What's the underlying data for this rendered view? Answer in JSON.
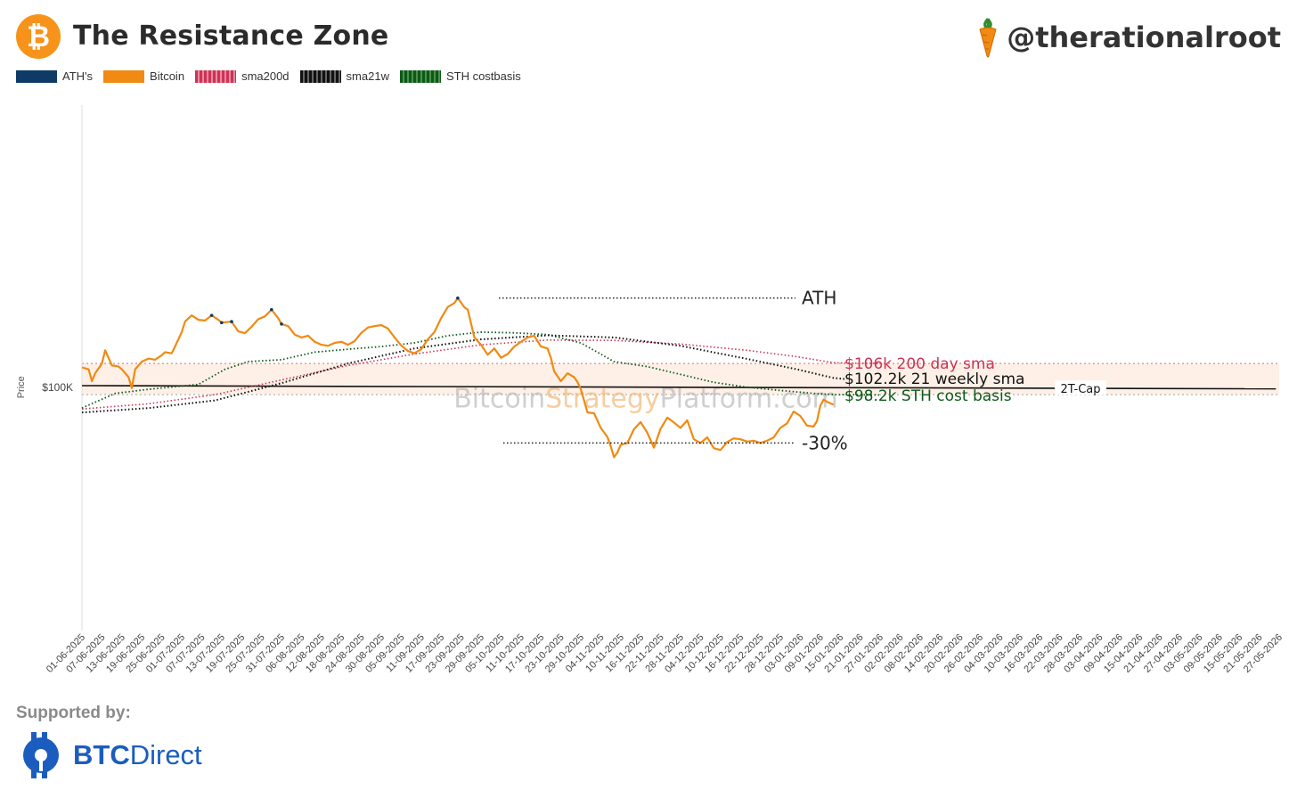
{
  "header": {
    "title": "The Resistance Zone",
    "handle": "@therationalroot",
    "logo_glyph": "₿"
  },
  "legend": [
    {
      "label": "ATH's",
      "color": "#0d3b66"
    },
    {
      "label": "Bitcoin",
      "color": "#f08a12"
    },
    {
      "label": "sma200d",
      "color": "#cc3355"
    },
    {
      "label": "sma21w",
      "color": "#111111"
    },
    {
      "label": "STH costbasis",
      "color": "#0b5b18"
    }
  ],
  "footer": {
    "supported_by": "Supported by:",
    "brand_bold": "BTC",
    "brand_light": "Direct"
  },
  "chart_data": {
    "type": "line",
    "ylabel": "Price",
    "ytick_labels": [
      "$100K"
    ],
    "ytick_values": [
      100000
    ],
    "yscale": "log",
    "ylim": [
      55000,
      200000
    ],
    "x_labels": [
      "01-06-2025",
      "07-06-2025",
      "13-06-2025",
      "19-06-2025",
      "25-06-2025",
      "01-07-2025",
      "07-07-2025",
      "13-07-2025",
      "19-07-2025",
      "25-07-2025",
      "31-07-2025",
      "06-08-2025",
      "12-08-2025",
      "18-08-2025",
      "24-08-2025",
      "30-08-2025",
      "05-09-2025",
      "11-09-2025",
      "17-09-2025",
      "23-09-2025",
      "29-09-2025",
      "05-10-2025",
      "11-10-2025",
      "17-10-2025",
      "23-10-2025",
      "29-10-2025",
      "04-11-2025",
      "10-11-2025",
      "16-11-2025",
      "22-11-2025",
      "28-11-2025",
      "04-12-2025",
      "10-12-2025",
      "16-12-2025",
      "22-12-2025",
      "28-12-2025",
      "03-01-2026",
      "09-01-2026",
      "15-01-2026",
      "21-01-2026",
      "27-01-2026",
      "02-02-2026",
      "08-02-2026",
      "14-02-2026",
      "20-02-2026",
      "26-02-2026",
      "04-03-2026",
      "10-03-2026",
      "16-03-2026",
      "22-03-2026",
      "28-03-2026",
      "03-04-2026",
      "09-04-2026",
      "15-04-2026",
      "21-04-2026",
      "27-04-2026",
      "03-05-2026",
      "09-05-2026",
      "15-05-2026",
      "21-05-2026",
      "27-05-2026"
    ],
    "series": [
      {
        "name": "Bitcoin",
        "color": "#f08a12",
        "points": [
          [
            0,
            105000
          ],
          [
            2,
            104500
          ],
          [
            3,
            101500
          ],
          [
            4,
            103500
          ],
          [
            6,
            106000
          ],
          [
            7,
            109500
          ],
          [
            9,
            105500
          ],
          [
            11,
            105200
          ],
          [
            12,
            104500
          ],
          [
            14,
            102500
          ],
          [
            15,
            99800
          ],
          [
            16,
            104500
          ],
          [
            18,
            106500
          ],
          [
            20,
            107300
          ],
          [
            22,
            107000
          ],
          [
            24,
            108200
          ],
          [
            25,
            109000
          ],
          [
            27,
            108700
          ],
          [
            28,
            110500
          ],
          [
            30,
            114500
          ],
          [
            31,
            117500
          ],
          [
            33,
            119300
          ],
          [
            35,
            118000
          ],
          [
            37,
            117800
          ],
          [
            39,
            119300
          ],
          [
            41,
            118000
          ],
          [
            42,
            117200
          ],
          [
            45,
            117500
          ],
          [
            47,
            114700
          ],
          [
            49,
            114200
          ],
          [
            51,
            116000
          ],
          [
            53,
            118200
          ],
          [
            55,
            119000
          ],
          [
            57,
            121000
          ],
          [
            59,
            118500
          ],
          [
            60,
            116800
          ],
          [
            62,
            116200
          ],
          [
            64,
            113800
          ],
          [
            66,
            113000
          ],
          [
            68,
            113500
          ],
          [
            70,
            111800
          ],
          [
            72,
            111000
          ],
          [
            74,
            110700
          ],
          [
            76,
            111500
          ],
          [
            78,
            111800
          ],
          [
            80,
            111000
          ],
          [
            82,
            112000
          ],
          [
            84,
            114300
          ],
          [
            86,
            115800
          ],
          [
            88,
            116200
          ],
          [
            90,
            116500
          ],
          [
            92,
            115500
          ],
          [
            94,
            113000
          ],
          [
            96,
            110800
          ],
          [
            98,
            109300
          ],
          [
            100,
            108700
          ],
          [
            102,
            109800
          ],
          [
            104,
            112500
          ],
          [
            106,
            114500
          ],
          [
            108,
            118500
          ],
          [
            110,
            121800
          ],
          [
            112,
            123000
          ],
          [
            113,
            124500
          ],
          [
            115,
            121700
          ],
          [
            116,
            121000
          ],
          [
            118,
            113000
          ],
          [
            120,
            111000
          ],
          [
            122,
            108300
          ],
          [
            124,
            110000
          ],
          [
            126,
            107500
          ],
          [
            128,
            108500
          ],
          [
            130,
            110500
          ],
          [
            132,
            111800
          ],
          [
            134,
            113000
          ],
          [
            136,
            113500
          ],
          [
            138,
            110500
          ],
          [
            140,
            110000
          ],
          [
            141,
            107500
          ],
          [
            142,
            104000
          ],
          [
            144,
            101500
          ],
          [
            146,
            103500
          ],
          [
            148,
            102500
          ],
          [
            149,
            101300
          ],
          [
            150,
            99500
          ],
          [
            152,
            94000
          ],
          [
            154,
            93800
          ],
          [
            156,
            90500
          ],
          [
            158,
            88500
          ],
          [
            159,
            86500
          ],
          [
            160,
            84200
          ],
          [
            161,
            85200
          ],
          [
            162,
            86800
          ],
          [
            164,
            87200
          ],
          [
            166,
            90200
          ],
          [
            168,
            91800
          ],
          [
            170,
            89400
          ],
          [
            172,
            86200
          ],
          [
            174,
            90300
          ],
          [
            176,
            92800
          ],
          [
            178,
            91700
          ],
          [
            180,
            90500
          ],
          [
            182,
            92200
          ],
          [
            184,
            88000
          ],
          [
            186,
            87200
          ],
          [
            188,
            88400
          ],
          [
            190,
            86100
          ],
          [
            192,
            85700
          ],
          [
            194,
            87400
          ],
          [
            196,
            88200
          ],
          [
            198,
            88000
          ],
          [
            200,
            87500
          ],
          [
            202,
            87700
          ],
          [
            204,
            87200
          ],
          [
            206,
            87700
          ],
          [
            208,
            88400
          ],
          [
            210,
            90500
          ],
          [
            212,
            91500
          ],
          [
            214,
            94200
          ],
          [
            216,
            93200
          ],
          [
            218,
            91000
          ],
          [
            220,
            90800
          ],
          [
            221,
            92000
          ],
          [
            222,
            95500
          ],
          [
            223,
            97000
          ],
          [
            224,
            96500
          ],
          [
            226,
            95800
          ]
        ]
      },
      {
        "name": "sma200d",
        "color": "#cc3355",
        "points": [
          [
            0,
            94800
          ],
          [
            20,
            96000
          ],
          [
            40,
            98200
          ],
          [
            60,
            101800
          ],
          [
            80,
            105500
          ],
          [
            100,
            108500
          ],
          [
            120,
            111000
          ],
          [
            140,
            112300
          ],
          [
            160,
            112200
          ],
          [
            180,
            111200
          ],
          [
            200,
            109500
          ],
          [
            215,
            107800
          ],
          [
            226,
            106200
          ],
          [
            240,
            106000
          ]
        ]
      },
      {
        "name": "sma21w",
        "color": "#111111",
        "points": [
          [
            0,
            94000
          ],
          [
            20,
            95000
          ],
          [
            40,
            96800
          ],
          [
            60,
            101000
          ],
          [
            80,
            106000
          ],
          [
            100,
            110000
          ],
          [
            120,
            112500
          ],
          [
            140,
            113600
          ],
          [
            160,
            113000
          ],
          [
            180,
            110700
          ],
          [
            200,
            107200
          ],
          [
            215,
            104500
          ],
          [
            226,
            102300
          ],
          [
            230,
            102000
          ]
        ]
      },
      {
        "name": "STH costbasis",
        "color": "#0b5b18",
        "points": [
          [
            0,
            95000
          ],
          [
            10,
            98500
          ],
          [
            20,
            99500
          ],
          [
            35,
            100700
          ],
          [
            43,
            104500
          ],
          [
            50,
            106500
          ],
          [
            60,
            107000
          ],
          [
            70,
            109000
          ],
          [
            80,
            109800
          ],
          [
            90,
            110500
          ],
          [
            100,
            111500
          ],
          [
            110,
            113500
          ],
          [
            120,
            114500
          ],
          [
            130,
            114300
          ],
          [
            140,
            113800
          ],
          [
            150,
            111500
          ],
          [
            160,
            106500
          ],
          [
            170,
            105200
          ],
          [
            180,
            103200
          ],
          [
            190,
            101200
          ],
          [
            200,
            100000
          ],
          [
            210,
            99200
          ],
          [
            220,
            98500
          ],
          [
            226,
            98200
          ],
          [
            240,
            98100
          ]
        ]
      },
      {
        "name": "2T-Cap",
        "color": "#111111",
        "points": [
          [
            0,
            100400
          ],
          [
            359,
            99600
          ]
        ]
      }
    ],
    "ath_points": [
      [
        39,
        119300
      ],
      [
        42,
        117200
      ],
      [
        45,
        117500
      ],
      [
        57,
        121000
      ],
      [
        60,
        116800
      ],
      [
        113,
        124500
      ]
    ],
    "ath_line": {
      "value": 124500,
      "label": "ATH"
    },
    "drawdown_line": {
      "value": 87200,
      "label": "-30%"
    },
    "resistance_zone": {
      "low": 98200,
      "high": 106000
    },
    "annotations": [
      {
        "label": "$106k  200 day sma",
        "value": 106000,
        "color": "#cc3355"
      },
      {
        "label": "$102.2k 21 weekly sma",
        "value": 102200,
        "color": "#111111"
      },
      {
        "label": "$98.2k STH cost basis",
        "value": 98200,
        "color": "#0b5b18"
      },
      {
        "label": "2T-Cap",
        "value": 99900,
        "color": "#111111"
      }
    ],
    "watermark": {
      "part1": "Bitcoin",
      "part2": "Strategy",
      "part3": "Platform.com"
    }
  }
}
